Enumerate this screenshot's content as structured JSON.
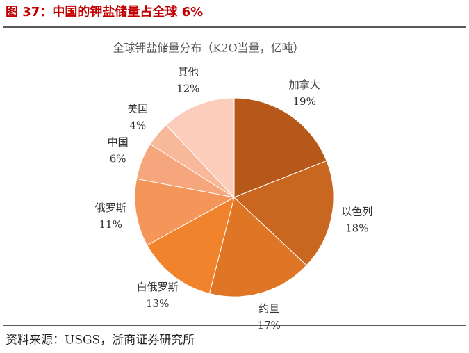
{
  "header": {
    "title": "图 37：中国的钾盐储量占全球 6%"
  },
  "chart_data": {
    "type": "pie",
    "title": "全球钾盐储量分布（K2O当量，亿吨）",
    "categories": [
      "加拿大",
      "以色列",
      "约旦",
      "白俄罗斯",
      "俄罗斯",
      "中国",
      "美国",
      "其他"
    ],
    "values": [
      19,
      18,
      17,
      13,
      11,
      6,
      4,
      12
    ],
    "value_labels": [
      "19%",
      "18%",
      "17%",
      "13%",
      "11%",
      "6%",
      "4%",
      "12%"
    ],
    "colors": [
      "#b5581a",
      "#c9661f",
      "#df7626",
      "#f0832c",
      "#f4955a",
      "#f5a67c",
      "#f8b99b",
      "#fccdbb"
    ]
  },
  "footer": {
    "source": "资料来源：USGS，浙商证券研究所"
  }
}
